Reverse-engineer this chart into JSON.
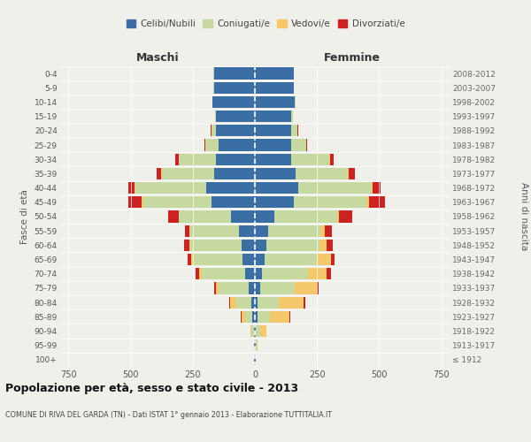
{
  "age_groups": [
    "100+",
    "95-99",
    "90-94",
    "85-89",
    "80-84",
    "75-79",
    "70-74",
    "65-69",
    "60-64",
    "55-59",
    "50-54",
    "45-49",
    "40-44",
    "35-39",
    "30-34",
    "25-29",
    "20-24",
    "15-19",
    "10-14",
    "5-9",
    "0-4"
  ],
  "birth_years": [
    "≤ 1912",
    "1913-1917",
    "1918-1922",
    "1923-1927",
    "1928-1932",
    "1933-1937",
    "1938-1942",
    "1943-1947",
    "1948-1952",
    "1953-1957",
    "1958-1962",
    "1963-1967",
    "1968-1972",
    "1973-1977",
    "1978-1982",
    "1983-1987",
    "1988-1992",
    "1993-1997",
    "1998-2002",
    "2003-2007",
    "2008-2012"
  ],
  "male": {
    "celibi": [
      2,
      2,
      5,
      10,
      15,
      25,
      40,
      50,
      55,
      65,
      95,
      175,
      195,
      165,
      155,
      145,
      155,
      155,
      170,
      165,
      165
    ],
    "coniugati": [
      1,
      2,
      8,
      30,
      60,
      120,
      175,
      200,
      205,
      195,
      210,
      275,
      285,
      210,
      150,
      55,
      20,
      5,
      2,
      1,
      1
    ],
    "vedovi": [
      0,
      1,
      5,
      15,
      25,
      10,
      10,
      5,
      5,
      3,
      3,
      5,
      3,
      2,
      1,
      1,
      1,
      0,
      0,
      0,
      0
    ],
    "divorziati": [
      0,
      0,
      1,
      2,
      3,
      8,
      15,
      15,
      20,
      20,
      40,
      55,
      25,
      20,
      15,
      3,
      2,
      1,
      0,
      0,
      0
    ]
  },
  "female": {
    "nubili": [
      2,
      3,
      5,
      10,
      12,
      20,
      30,
      40,
      45,
      55,
      80,
      155,
      175,
      165,
      145,
      145,
      145,
      145,
      160,
      155,
      155
    ],
    "coniugate": [
      1,
      3,
      15,
      50,
      85,
      140,
      185,
      210,
      215,
      210,
      250,
      295,
      295,
      210,
      155,
      60,
      25,
      8,
      3,
      1,
      1
    ],
    "vedove": [
      2,
      5,
      25,
      80,
      100,
      90,
      75,
      55,
      30,
      15,
      10,
      10,
      5,
      3,
      2,
      2,
      1,
      0,
      0,
      0,
      0
    ],
    "divorziate": [
      0,
      0,
      1,
      2,
      5,
      8,
      15,
      15,
      25,
      30,
      50,
      65,
      30,
      25,
      15,
      3,
      2,
      1,
      0,
      0,
      0
    ]
  },
  "colors": {
    "celibi": "#3a6ea5",
    "coniugati": "#c5d9a0",
    "vedovi": "#f5c96a",
    "divorziati": "#cc2222"
  },
  "title": "Popolazione per età, sesso e stato civile - 2013",
  "subtitle": "COMUNE DI RIVA DEL GARDA (TN) - Dati ISTAT 1° gennaio 2013 - Elaborazione TUTTITALIA.IT",
  "xlabel_left": "Maschi",
  "xlabel_right": "Femmine",
  "ylabel_left": "Fasce di età",
  "ylabel_right": "Anni di nascita",
  "xlim": 780,
  "background": "#f0f0eb",
  "legend_labels": [
    "Celibi/Nubili",
    "Coniugati/e",
    "Vedovi/e",
    "Divorziati/e"
  ]
}
